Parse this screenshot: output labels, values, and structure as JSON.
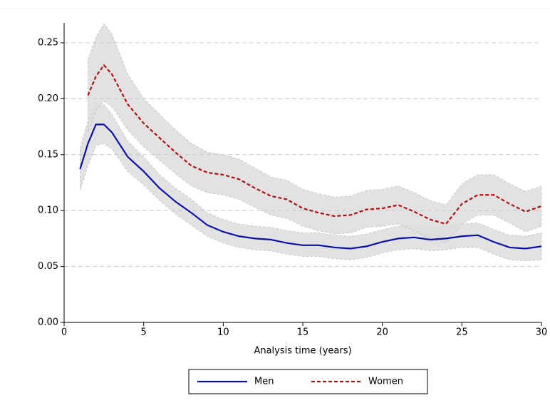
{
  "chart_data": {
    "type": "line",
    "xlabel": "Analysis time (years)",
    "x": [
      1,
      1.5,
      2,
      2.5,
      3,
      4,
      5,
      6,
      7,
      8,
      9,
      10,
      11,
      12,
      13,
      14,
      15,
      16,
      17,
      18,
      19,
      20,
      21,
      22,
      23,
      24,
      25,
      26,
      27,
      28,
      29,
      30
    ],
    "series": [
      {
        "name": "Men",
        "color": "#0a10a8",
        "dash": false,
        "band_color": "#dddddd",
        "values": [
          0.137,
          0.16,
          0.177,
          0.177,
          0.17,
          0.148,
          0.135,
          0.12,
          0.108,
          0.098,
          0.087,
          0.081,
          0.077,
          0.075,
          0.074,
          0.071,
          0.069,
          0.069,
          0.067,
          0.066,
          0.068,
          0.072,
          0.075,
          0.076,
          0.074,
          0.075,
          0.077,
          0.078,
          0.072,
          0.067,
          0.066,
          0.068
        ],
        "lower": [
          0.118,
          0.14,
          0.158,
          0.16,
          0.155,
          0.135,
          0.123,
          0.109,
          0.097,
          0.087,
          0.077,
          0.071,
          0.067,
          0.065,
          0.064,
          0.061,
          0.059,
          0.059,
          0.057,
          0.056,
          0.058,
          0.062,
          0.065,
          0.066,
          0.064,
          0.065,
          0.067,
          0.067,
          0.061,
          0.056,
          0.055,
          0.056
        ],
        "upper": [
          0.156,
          0.18,
          0.196,
          0.195,
          0.186,
          0.162,
          0.148,
          0.132,
          0.12,
          0.11,
          0.098,
          0.092,
          0.088,
          0.086,
          0.085,
          0.082,
          0.08,
          0.08,
          0.078,
          0.077,
          0.079,
          0.083,
          0.086,
          0.087,
          0.085,
          0.086,
          0.088,
          0.089,
          0.083,
          0.078,
          0.077,
          0.08
        ]
      },
      {
        "name": "Women",
        "color": "#b01010",
        "dash": true,
        "band_color": "#dddddd",
        "values": [
          null,
          0.203,
          0.22,
          0.23,
          0.222,
          0.195,
          0.178,
          0.165,
          0.152,
          0.14,
          0.134,
          0.132,
          0.128,
          0.12,
          0.113,
          0.11,
          0.102,
          0.098,
          0.095,
          0.096,
          0.101,
          0.102,
          0.105,
          0.099,
          0.092,
          0.088,
          0.106,
          0.114,
          0.114,
          0.106,
          0.099,
          0.104
        ],
        "lower": [
          null,
          0.17,
          0.19,
          0.198,
          0.193,
          0.172,
          0.157,
          0.145,
          0.133,
          0.122,
          0.116,
          0.114,
          0.11,
          0.103,
          0.096,
          0.093,
          0.086,
          0.082,
          0.079,
          0.08,
          0.085,
          0.086,
          0.088,
          0.082,
          0.075,
          0.071,
          0.088,
          0.096,
          0.096,
          0.089,
          0.081,
          0.086
        ],
        "upper": [
          null,
          0.235,
          0.255,
          0.267,
          0.258,
          0.222,
          0.2,
          0.186,
          0.172,
          0.16,
          0.152,
          0.15,
          0.146,
          0.138,
          0.13,
          0.127,
          0.119,
          0.115,
          0.112,
          0.113,
          0.118,
          0.119,
          0.122,
          0.116,
          0.109,
          0.105,
          0.124,
          0.132,
          0.132,
          0.124,
          0.117,
          0.122
        ]
      }
    ],
    "xlim": [
      0,
      30
    ],
    "xticks": [
      0,
      5,
      10,
      15,
      20,
      25,
      30
    ],
    "ylim": [
      0,
      0.25
    ],
    "yticks": [
      {
        "value": 0,
        "label": "0.00"
      },
      {
        "value": 0.05,
        "label": "0.05"
      },
      {
        "value": 0.1,
        "label": "0.10"
      },
      {
        "value": 0.15,
        "label": "0.15"
      },
      {
        "value": 0.2,
        "label": "0.20"
      },
      {
        "value": 0.25,
        "label": "0.25"
      }
    ],
    "grid": true,
    "legend": "bottom"
  }
}
